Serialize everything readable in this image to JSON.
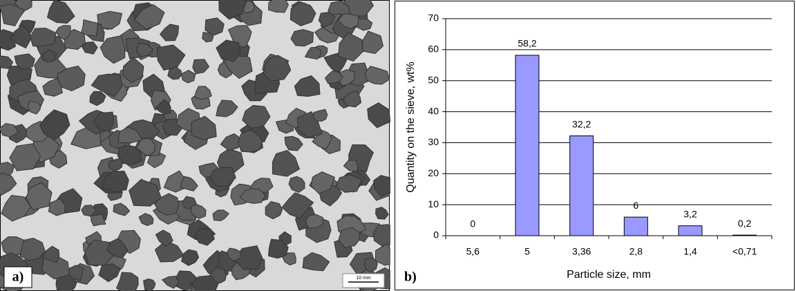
{
  "panel_labels": [
    "a)",
    "b)"
  ],
  "scale_bar": "10 mm",
  "chart_data": {
    "type": "bar",
    "categories": [
      "5,6",
      "5",
      "3,36",
      "2,8",
      "1,4",
      "<0,71"
    ],
    "values": [
      0,
      58.2,
      32.2,
      6,
      3.2,
      0.2
    ],
    "value_labels": [
      "0",
      "58,2",
      "32,2",
      "6",
      "3,2",
      "0,2"
    ],
    "color": "#9999ff",
    "x_label": "Particle size, mm",
    "y_label": "Quantity on the sieve, wt%",
    "ylim": [
      0,
      70
    ],
    "yticks": [
      0,
      10,
      20,
      30,
      40,
      50,
      60,
      70
    ],
    "grid": true
  }
}
